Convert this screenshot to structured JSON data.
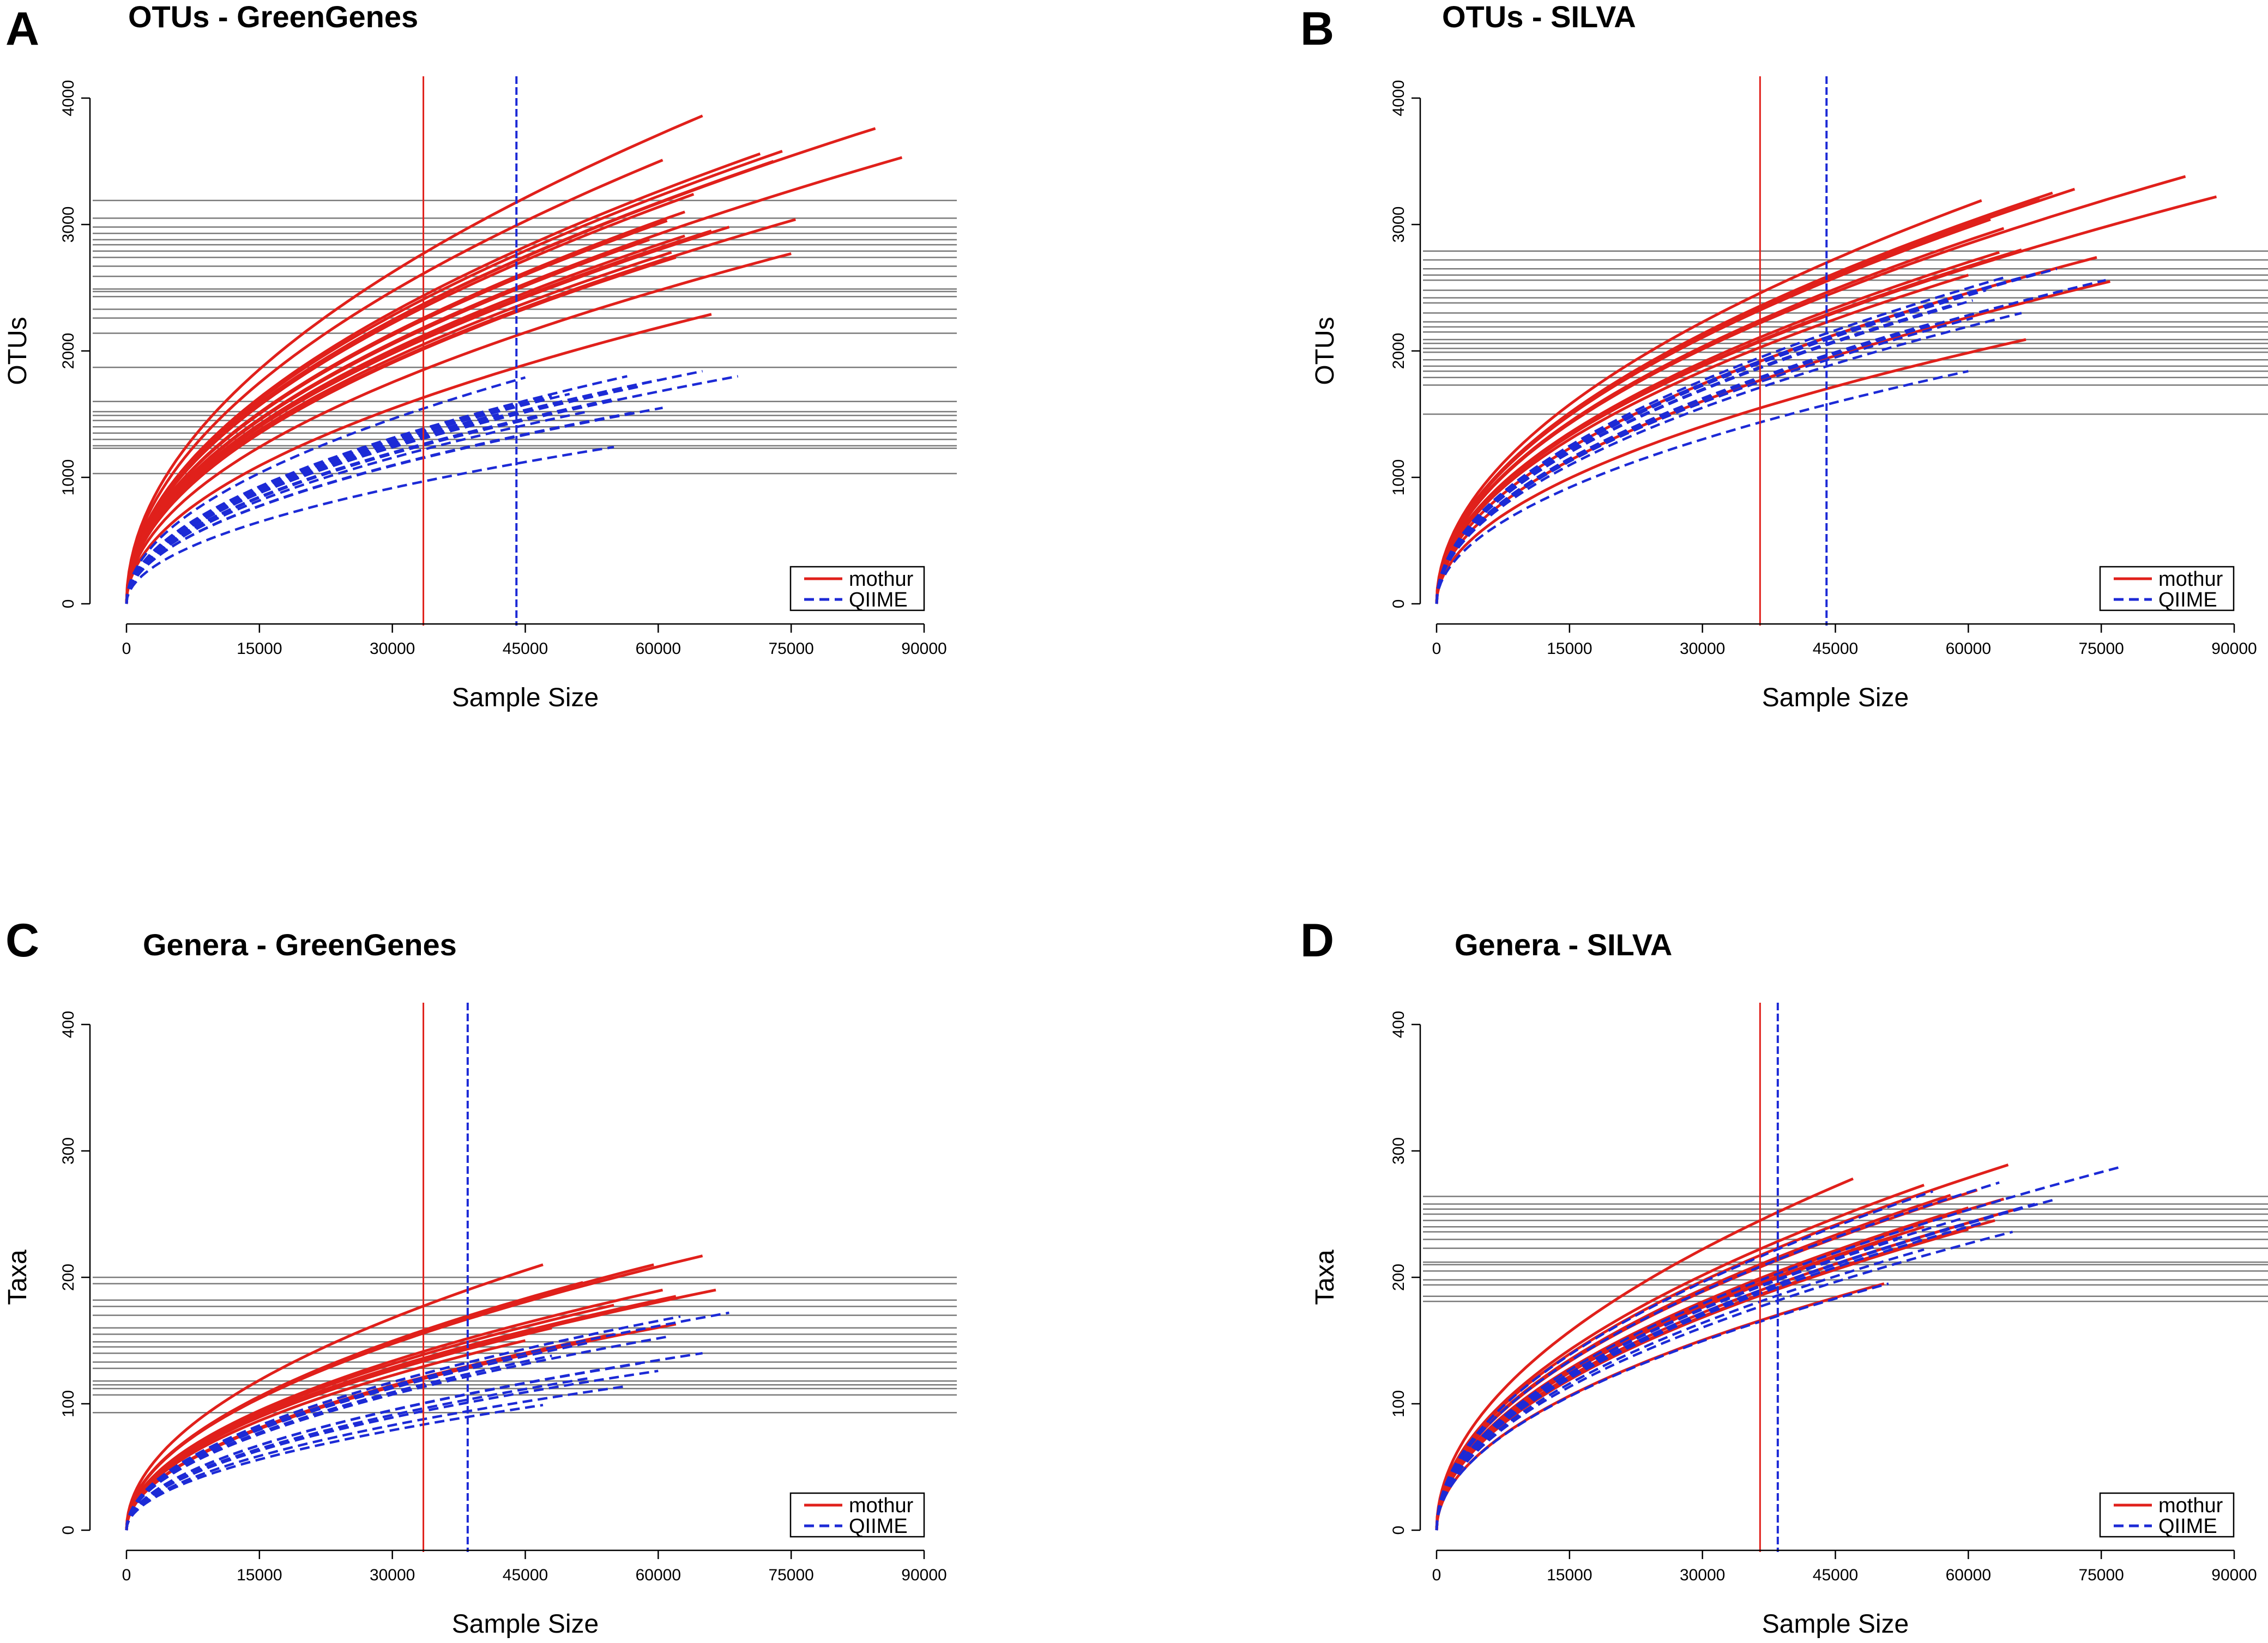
{
  "figure": {
    "legend_labels": [
      "mothur",
      "QIIME"
    ],
    "colors": {
      "mothur": "#e0201b",
      "qiime": "#1c2ad6",
      "reference": "#7a7a7a",
      "axis": "#000000"
    }
  },
  "chart_data": [
    {
      "id": "A",
      "letter": "A",
      "type": "line",
      "title": "OTUs - GreenGenes",
      "xlabel": "Sample Size",
      "ylabel": "OTUs",
      "xlim": [
        0,
        90000
      ],
      "ylim": [
        0,
        4000
      ],
      "xticks": [
        0,
        15000,
        30000,
        45000,
        60000,
        75000,
        90000
      ],
      "yticks": [
        0,
        1000,
        2000,
        3000,
        4000
      ],
      "xtick_labels": [
        "0",
        "15000",
        "30000",
        "45000",
        "60000",
        "75000",
        "90000"
      ],
      "ytick_labels": [
        "0",
        "1000",
        "2000",
        "3000",
        "4000"
      ],
      "legend_position": "bottom-right",
      "vlines": [
        {
          "series": "mothur",
          "x": 33500
        },
        {
          "series": "QIIME",
          "x": 44000
        }
      ],
      "hlines": [
        3190,
        3050,
        2980,
        2930,
        2880,
        2840,
        2790,
        2740,
        2670,
        2590,
        2490,
        2470,
        2430,
        2330,
        2260,
        2140,
        1870,
        1600,
        1520,
        1490,
        1450,
        1400,
        1350,
        1300,
        1250,
        1230,
        1030
      ],
      "series": [
        {
          "name": "mothur",
          "curves": [
            [
              65000,
              3860
            ],
            [
              84500,
              3760
            ],
            [
              87500,
              3530
            ],
            [
              74000,
              3580
            ],
            [
              71500,
              3560
            ],
            [
              73000,
              3500
            ],
            [
              60500,
              3510
            ],
            [
              64000,
              3240
            ],
            [
              63000,
              3100
            ],
            [
              61000,
              3030
            ],
            [
              75500,
              3040
            ],
            [
              68000,
              2980
            ],
            [
              66000,
              2950
            ],
            [
              63000,
              2910
            ],
            [
              59000,
              2880
            ],
            [
              61500,
              2780
            ],
            [
              75000,
              2770
            ],
            [
              62000,
              2740
            ],
            [
              66000,
              2290
            ]
          ]
        },
        {
          "name": "QIIME",
          "curves": [
            [
              69000,
              1800
            ],
            [
              65000,
              1840
            ],
            [
              56500,
              1800
            ],
            [
              60000,
              1770
            ],
            [
              45000,
              1790
            ],
            [
              58000,
              1720
            ],
            [
              50000,
              1660
            ],
            [
              55000,
              1620
            ],
            [
              48000,
              1640
            ],
            [
              60500,
              1550
            ],
            [
              52000,
              1520
            ],
            [
              57000,
              1510
            ],
            [
              42000,
              1500
            ],
            [
              55000,
              1240
            ]
          ]
        }
      ]
    },
    {
      "id": "B",
      "letter": "B",
      "type": "line",
      "title": "OTUs - SILVA",
      "xlabel": "Sample Size",
      "ylabel": "OTUs",
      "xlim": [
        0,
        90000
      ],
      "ylim": [
        0,
        4000
      ],
      "xticks": [
        0,
        15000,
        30000,
        45000,
        60000,
        75000,
        90000
      ],
      "yticks": [
        0,
        1000,
        2000,
        3000,
        4000
      ],
      "xtick_labels": [
        "0",
        "15000",
        "30000",
        "45000",
        "60000",
        "75000",
        "90000"
      ],
      "ytick_labels": [
        "0",
        "1000",
        "2000",
        "3000",
        "4000"
      ],
      "legend_position": "bottom-right",
      "vlines": [
        {
          "series": "mothur",
          "x": 36500
        },
        {
          "series": "QIIME",
          "x": 44000
        }
      ],
      "hlines": [
        2790,
        2720,
        2650,
        2600,
        2560,
        2480,
        2420,
        2380,
        2300,
        2230,
        2190,
        2150,
        2090,
        2060,
        2020,
        1990,
        1930,
        1880,
        1840,
        1790,
        1730,
        1500
      ],
      "series": [
        {
          "name": "mothur",
          "curves": [
            [
              84500,
              3380
            ],
            [
              88000,
              3220
            ],
            [
              69500,
              3250
            ],
            [
              72000,
              3280
            ],
            [
              61500,
              3190
            ],
            [
              68000,
              3210
            ],
            [
              62500,
              3040
            ],
            [
              64000,
              2970
            ],
            [
              63500,
              2780
            ],
            [
              66000,
              2800
            ],
            [
              76000,
              2550
            ],
            [
              74500,
              2740
            ],
            [
              60000,
              2600
            ],
            [
              61000,
              2690
            ],
            [
              66500,
              2090
            ]
          ]
        },
        {
          "name": "QIIME",
          "curves": [
            [
              70000,
              2650
            ],
            [
              68000,
              2620
            ],
            [
              64500,
              2590
            ],
            [
              72000,
              2500
            ],
            [
              62000,
              2480
            ],
            [
              60500,
              2400
            ],
            [
              58000,
              2360
            ],
            [
              66000,
              2300
            ],
            [
              60500,
              2260
            ],
            [
              56000,
              2220
            ],
            [
              60000,
              1840
            ],
            [
              75500,
              2560
            ]
          ]
        }
      ]
    },
    {
      "id": "C",
      "letter": "C",
      "type": "line",
      "title": "Genera - GreenGenes",
      "xlabel": "Sample Size",
      "ylabel": "Taxa",
      "xlim": [
        0,
        90000
      ],
      "ylim": [
        0,
        400
      ],
      "xticks": [
        0,
        15000,
        30000,
        45000,
        60000,
        75000,
        90000
      ],
      "yticks": [
        0,
        100,
        200,
        300,
        400
      ],
      "xtick_labels": [
        "0",
        "15000",
        "30000",
        "45000",
        "60000",
        "75000",
        "90000"
      ],
      "ytick_labels": [
        "0",
        "100",
        "200",
        "300",
        "400"
      ],
      "legend_position": "bottom-right",
      "vlines": [
        {
          "series": "mothur",
          "x": 33500
        },
        {
          "series": "QIIME",
          "x": 38500
        }
      ],
      "hlines": [
        200,
        195,
        182,
        177,
        170,
        160,
        155,
        149,
        145,
        140,
        133,
        128,
        118,
        115,
        112,
        107,
        93
      ],
      "series": [
        {
          "name": "mothur",
          "curves": [
            [
              65000,
              217
            ],
            [
              59500,
              210
            ],
            [
              47000,
              210
            ],
            [
              51500,
              196
            ],
            [
              51000,
              193
            ],
            [
              60500,
              190
            ],
            [
              66500,
              190
            ],
            [
              62000,
              185
            ],
            [
              55000,
              178
            ],
            [
              53000,
              170
            ],
            [
              50000,
              166
            ],
            [
              48000,
              160
            ],
            [
              55000,
              155
            ],
            [
              45000,
              150
            ],
            [
              62000,
              163
            ]
          ]
        },
        {
          "name": "QIIME",
          "curves": [
            [
              68000,
              172
            ],
            [
              62500,
              169
            ],
            [
              56000,
              160
            ],
            [
              61000,
              153
            ],
            [
              52000,
              148
            ],
            [
              65000,
              140
            ],
            [
              48000,
              138
            ],
            [
              58000,
              132
            ],
            [
              60000,
              126
            ],
            [
              52000,
              120
            ],
            [
              47000,
              99
            ],
            [
              56500,
              114
            ]
          ]
        }
      ]
    },
    {
      "id": "D",
      "letter": "D",
      "type": "line",
      "title": "Genera - SILVA",
      "xlabel": "Sample Size",
      "ylabel": "Taxa",
      "xlim": [
        0,
        90000
      ],
      "ylim": [
        0,
        400
      ],
      "xticks": [
        0,
        15000,
        30000,
        45000,
        60000,
        75000,
        90000
      ],
      "yticks": [
        0,
        100,
        200,
        300,
        400
      ],
      "xtick_labels": [
        "0",
        "15000",
        "30000",
        "45000",
        "60000",
        "75000",
        "90000"
      ],
      "ytick_labels": [
        "0",
        "100",
        "200",
        "300",
        "400"
      ],
      "legend_position": "bottom-right",
      "vlines": [
        {
          "series": "mothur",
          "x": 36500
        },
        {
          "series": "QIIME",
          "x": 38500
        }
      ],
      "hlines": [
        264,
        258,
        254,
        250,
        245,
        240,
        236,
        230,
        223,
        212,
        210,
        205,
        198,
        194,
        185,
        181
      ],
      "series": [
        {
          "name": "mothur",
          "curves": [
            [
              64500,
              289
            ],
            [
              47000,
              278
            ],
            [
              55000,
              273
            ],
            [
              61000,
              269
            ],
            [
              58000,
              265
            ],
            [
              64000,
              262
            ],
            [
              60000,
              255
            ],
            [
              57000,
              249
            ],
            [
              63000,
              245
            ],
            [
              55000,
              240
            ],
            [
              60000,
              238
            ],
            [
              52000,
              232
            ],
            [
              50500,
              195
            ],
            [
              66000,
              255
            ]
          ]
        },
        {
          "name": "QIIME",
          "curves": [
            [
              77000,
              287
            ],
            [
              70000,
              262
            ],
            [
              67500,
              258
            ],
            [
              63500,
              275
            ],
            [
              56000,
              268
            ],
            [
              66000,
              255
            ],
            [
              59500,
              247
            ],
            [
              62000,
              244
            ],
            [
              65000,
              236
            ],
            [
              52000,
              230
            ],
            [
              55000,
              222
            ],
            [
              51000,
              195
            ]
          ]
        }
      ]
    }
  ]
}
